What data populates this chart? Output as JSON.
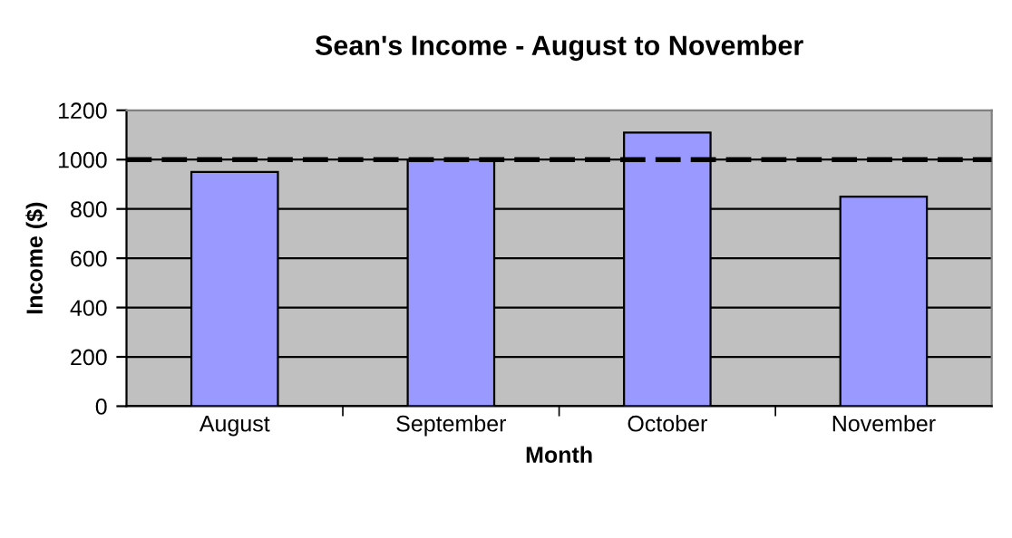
{
  "chart_data": {
    "type": "bar",
    "title": "Sean's Income - August to November",
    "xlabel": "Month",
    "ylabel": "Income ($)",
    "categories": [
      "August",
      "September",
      "October",
      "November"
    ],
    "values": [
      950,
      1000,
      1110,
      850
    ],
    "color": "#9999ff",
    "ylim": [
      0,
      1200
    ],
    "yticks": [
      0,
      200,
      400,
      600,
      800,
      1000,
      1200
    ],
    "grid": "y",
    "ref_lines": [
      {
        "axis": "y",
        "value": 1000,
        "color": "#000000",
        "line_style": "dashed"
      }
    ]
  }
}
